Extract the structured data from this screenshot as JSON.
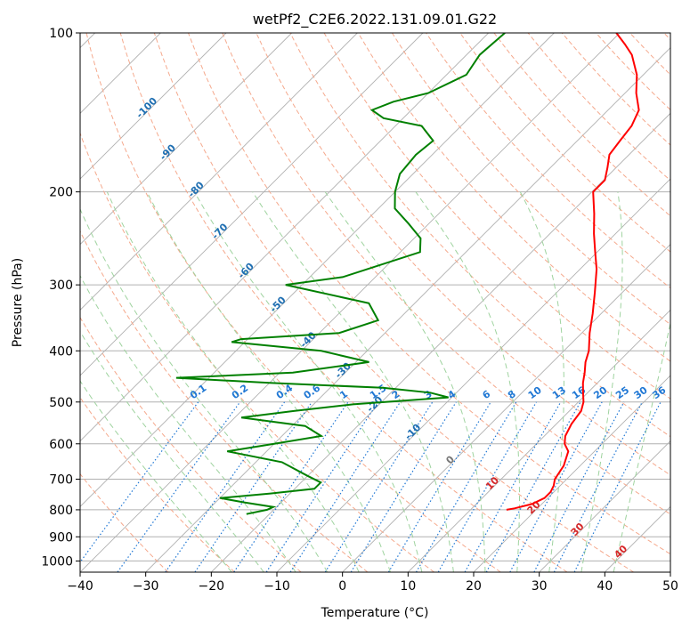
{
  "chart_data": {
    "type": "skew-t",
    "title": "wetPf2_C2E6.2022.131.09.01.G22",
    "xlabel": "Temperature (°C)",
    "ylabel": "Pressure (hPa)",
    "xlim": [
      -40,
      50
    ],
    "ylim_hpa": [
      1050,
      100
    ],
    "x_ticks": [
      -40,
      -30,
      -20,
      -10,
      0,
      10,
      20,
      30,
      40,
      50
    ],
    "y_ticks": [
      100,
      200,
      300,
      400,
      500,
      600,
      700,
      800,
      900,
      1000
    ],
    "grid": true,
    "series": [
      {
        "kind": "temperature",
        "color": "#ff0000",
        "points": [
          {
            "p": 800,
            "t": 15.5
          },
          {
            "p": 795,
            "t": 16.5
          },
          {
            "p": 780,
            "t": 18.5
          },
          {
            "p": 760,
            "t": 19.5
          },
          {
            "p": 740,
            "t": 19.5
          },
          {
            "p": 720,
            "t": 19.0
          },
          {
            "p": 700,
            "t": 18.2
          },
          {
            "p": 660,
            "t": 17.5
          },
          {
            "p": 620,
            "t": 16.0
          },
          {
            "p": 600,
            "t": 14.3
          },
          {
            "p": 580,
            "t": 13.2
          },
          {
            "p": 550,
            "t": 12.3
          },
          {
            "p": 520,
            "t": 11.8
          },
          {
            "p": 500,
            "t": 10.8
          },
          {
            "p": 480,
            "t": 9.3
          },
          {
            "p": 460,
            "t": 7.8
          },
          {
            "p": 440,
            "t": 6.5
          },
          {
            "p": 420,
            "t": 5.0
          },
          {
            "p": 400,
            "t": 3.8
          },
          {
            "p": 370,
            "t": 1.2
          },
          {
            "p": 340,
            "t": -1.3
          },
          {
            "p": 310,
            "t": -4.2
          },
          {
            "p": 280,
            "t": -7.5
          },
          {
            "p": 260,
            "t": -10.3
          },
          {
            "p": 240,
            "t": -13.3
          },
          {
            "p": 220,
            "t": -16.3
          },
          {
            "p": 200,
            "t": -19.8
          },
          {
            "p": 190,
            "t": -19.8
          },
          {
            "p": 180,
            "t": -21.3
          },
          {
            "p": 170,
            "t": -23.0
          },
          {
            "p": 160,
            "t": -23.5
          },
          {
            "p": 150,
            "t": -24.0
          },
          {
            "p": 140,
            "t": -25.3
          },
          {
            "p": 130,
            "t": -28.3
          },
          {
            "p": 120,
            "t": -31.0
          },
          {
            "p": 110,
            "t": -34.8
          },
          {
            "p": 105,
            "t": -37.5
          },
          {
            "p": 100,
            "t": -40.5
          }
        ]
      },
      {
        "kind": "dewpoint",
        "color": "#008000",
        "points": [
          {
            "p": 815,
            "t": -23.5
          },
          {
            "p": 800,
            "t": -21.0
          },
          {
            "p": 790,
            "t": -20.5
          },
          {
            "p": 775,
            "t": -25.5
          },
          {
            "p": 760,
            "t": -30.0
          },
          {
            "p": 745,
            "t": -23.0
          },
          {
            "p": 730,
            "t": -17.0
          },
          {
            "p": 710,
            "t": -17.0
          },
          {
            "p": 690,
            "t": -20.0
          },
          {
            "p": 650,
            "t": -26.0
          },
          {
            "p": 620,
            "t": -36.0
          },
          {
            "p": 600,
            "t": -30.0
          },
          {
            "p": 580,
            "t": -24.0
          },
          {
            "p": 555,
            "t": -28.0
          },
          {
            "p": 535,
            "t": -39.0
          },
          {
            "p": 520,
            "t": -32.0
          },
          {
            "p": 505,
            "t": -24.0
          },
          {
            "p": 490,
            "t": -10.5
          },
          {
            "p": 480,
            "t": -14.0
          },
          {
            "p": 470,
            "t": -22.0
          },
          {
            "p": 460,
            "t": -40.0
          },
          {
            "p": 450,
            "t": -55.0
          },
          {
            "p": 440,
            "t": -38.0
          },
          {
            "p": 420,
            "t": -28.0
          },
          {
            "p": 400,
            "t": -37.0
          },
          {
            "p": 385,
            "t": -52.0
          },
          {
            "p": 380,
            "t": -51.0
          },
          {
            "p": 370,
            "t": -37.0
          },
          {
            "p": 350,
            "t": -33.0
          },
          {
            "p": 325,
            "t": -37.0
          },
          {
            "p": 300,
            "t": -52.5
          },
          {
            "p": 290,
            "t": -45.0
          },
          {
            "p": 260,
            "t": -37.0
          },
          {
            "p": 245,
            "t": -39.0
          },
          {
            "p": 230,
            "t": -43.0
          },
          {
            "p": 215,
            "t": -47.5
          },
          {
            "p": 200,
            "t": -50.0
          },
          {
            "p": 185,
            "t": -52.0
          },
          {
            "p": 170,
            "t": -52.5
          },
          {
            "p": 160,
            "t": -52.0
          },
          {
            "p": 150,
            "t": -56.0
          },
          {
            "p": 145,
            "t": -63.0
          },
          {
            "p": 140,
            "t": -66.0
          },
          {
            "p": 135,
            "t": -64.0
          },
          {
            "p": 130,
            "t": -60.0
          },
          {
            "p": 120,
            "t": -57.0
          },
          {
            "p": 110,
            "t": -58.0
          },
          {
            "p": 100,
            "t": -57.5
          }
        ]
      }
    ],
    "dry_adiabat_labels": [
      "-100",
      "-90",
      "-80",
      "-70",
      "-60",
      "-50",
      "-40",
      "-30",
      "-20",
      "-10",
      "0",
      "10",
      "20",
      "30",
      "40"
    ],
    "mixing_ratio_labels": [
      "0.1",
      "0.2",
      "0.4",
      "0.6",
      "1",
      "1.5",
      "2",
      "3",
      "4",
      "6",
      "8",
      "10",
      "13",
      "16",
      "20",
      "25",
      "30",
      "36"
    ],
    "colors": {
      "isotherm": "#b0b0b0",
      "dry_adiabat": "#f5a98d",
      "moist_adiabat": "#9fd39f",
      "mixing_ratio": "#1f77d4",
      "label_dark_blue": "#1f6fb2",
      "label_red": "#d62728",
      "label_gray": "#777777"
    }
  }
}
